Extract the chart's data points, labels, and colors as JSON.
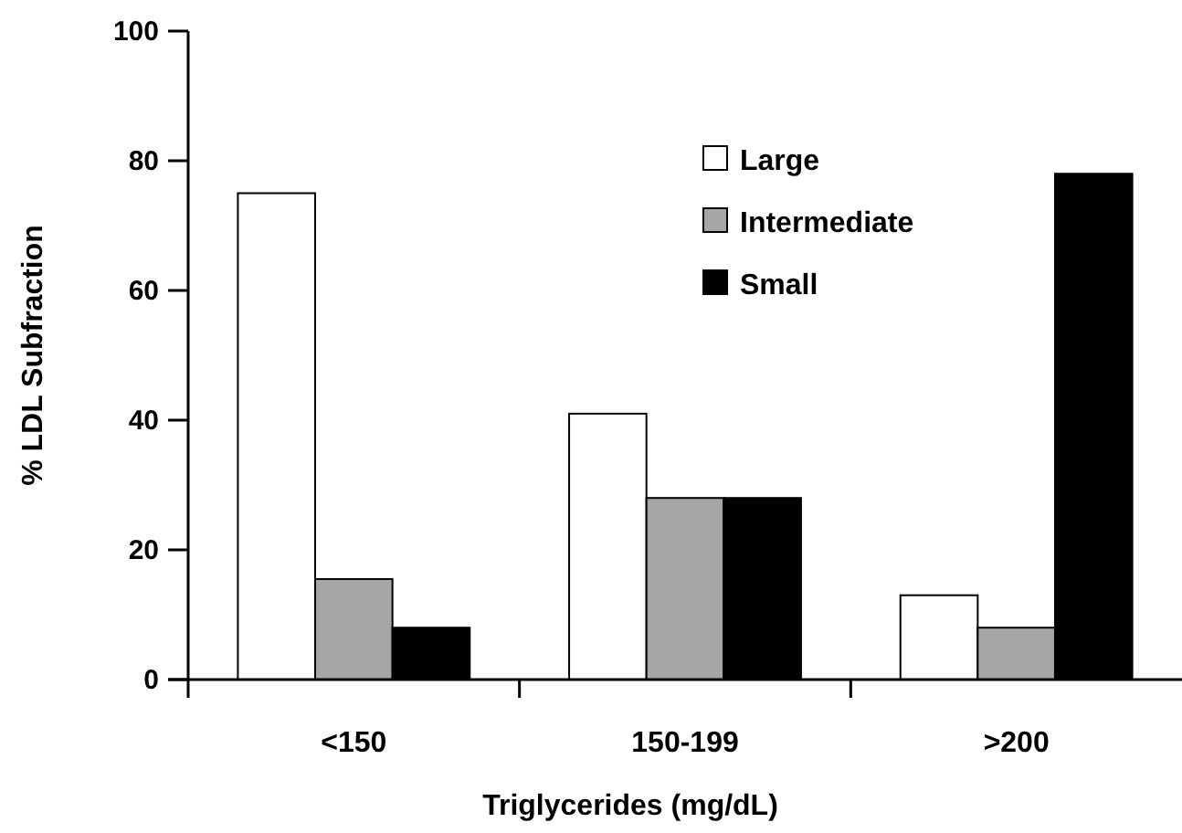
{
  "chart_data": {
    "type": "bar",
    "xlabel": "Triglycerides (mg/dL)",
    "ylabel": "% LDL Subfraction",
    "categories": [
      "<150",
      "150-199",
      ">200"
    ],
    "series": [
      {
        "name": "Large",
        "color": "#ffffff",
        "values": [
          75,
          41,
          13
        ]
      },
      {
        "name": "Intermediate",
        "color": "#a6a6a6",
        "values": [
          15.5,
          28,
          8
        ]
      },
      {
        "name": "Small",
        "color": "#000000",
        "values": [
          8,
          28,
          78
        ]
      }
    ],
    "ylim": [
      0,
      100
    ],
    "yticks": [
      0,
      20,
      40,
      60,
      80,
      100
    ],
    "grid": false,
    "legend": "top right"
  }
}
